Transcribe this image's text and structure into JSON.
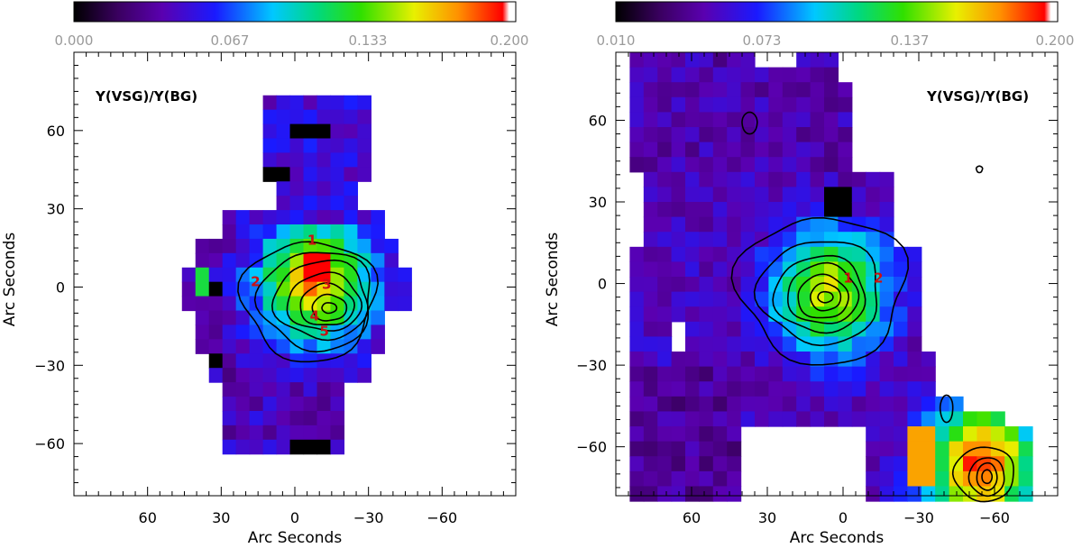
{
  "chart_data": [
    {
      "type": "heatmap",
      "panel_label": "Y(VSG)/Y(BG)",
      "xlabel": "Arc Seconds",
      "ylabel": "Arc Seconds",
      "xlim": [
        90,
        -90
      ],
      "ylim": [
        -80,
        90
      ],
      "x_ticks": [
        60,
        30,
        0,
        -30,
        -60
      ],
      "x_tick_labels": [
        "60",
        "30",
        "0",
        "−30",
        "−60"
      ],
      "y_ticks": [
        60,
        30,
        0,
        -30,
        -60
      ],
      "y_tick_labels": [
        "60",
        "30",
        "0",
        "−30",
        "−60"
      ],
      "colorbar": {
        "range": [
          0.0,
          0.2
        ],
        "tick_labels": [
          "0.000",
          "0.067",
          "0.133",
          "0.200"
        ],
        "colormap": "rainbow"
      },
      "pixel_size_arcsec": 5.5,
      "clump_labels": [
        {
          "text": "1",
          "x": -7,
          "y": 18
        },
        {
          "text": "2",
          "x": 16,
          "y": 2
        },
        {
          "text": "3",
          "x": -13,
          "y": 1
        },
        {
          "text": "4",
          "x": -8,
          "y": -11
        },
        {
          "text": "5",
          "x": -12,
          "y": -17
        }
      ],
      "contour_peak": {
        "x": -14,
        "y": -8
      }
    },
    {
      "type": "heatmap",
      "panel_label": "Y(VSG)/Y(BG)",
      "xlabel": "Arc Seconds",
      "ylabel": "Arc Seconds",
      "xlim": [
        90,
        -85
      ],
      "ylim": [
        -78,
        85
      ],
      "x_ticks": [
        60,
        30,
        0,
        -30,
        -60
      ],
      "x_tick_labels": [
        "60",
        "30",
        "0",
        "−30",
        "−60"
      ],
      "y_ticks": [
        60,
        30,
        0,
        -30,
        -60
      ],
      "y_tick_labels": [
        "60",
        "30",
        "0",
        "−30",
        "−60"
      ],
      "colorbar": {
        "range": [
          0.01,
          0.2
        ],
        "tick_labels": [
          "0.010",
          "0.073",
          "0.137",
          "0.200"
        ],
        "colormap": "rainbow"
      },
      "pixel_size_arcsec": 5.5,
      "clump_labels": [
        {
          "text": "1",
          "x": -2,
          "y": 2
        },
        {
          "text": "2",
          "x": -14,
          "y": 2
        }
      ],
      "contour_peak": {
        "x": 7,
        "y": -5
      },
      "secondary_peak": {
        "x": -55,
        "y": -70
      }
    }
  ]
}
